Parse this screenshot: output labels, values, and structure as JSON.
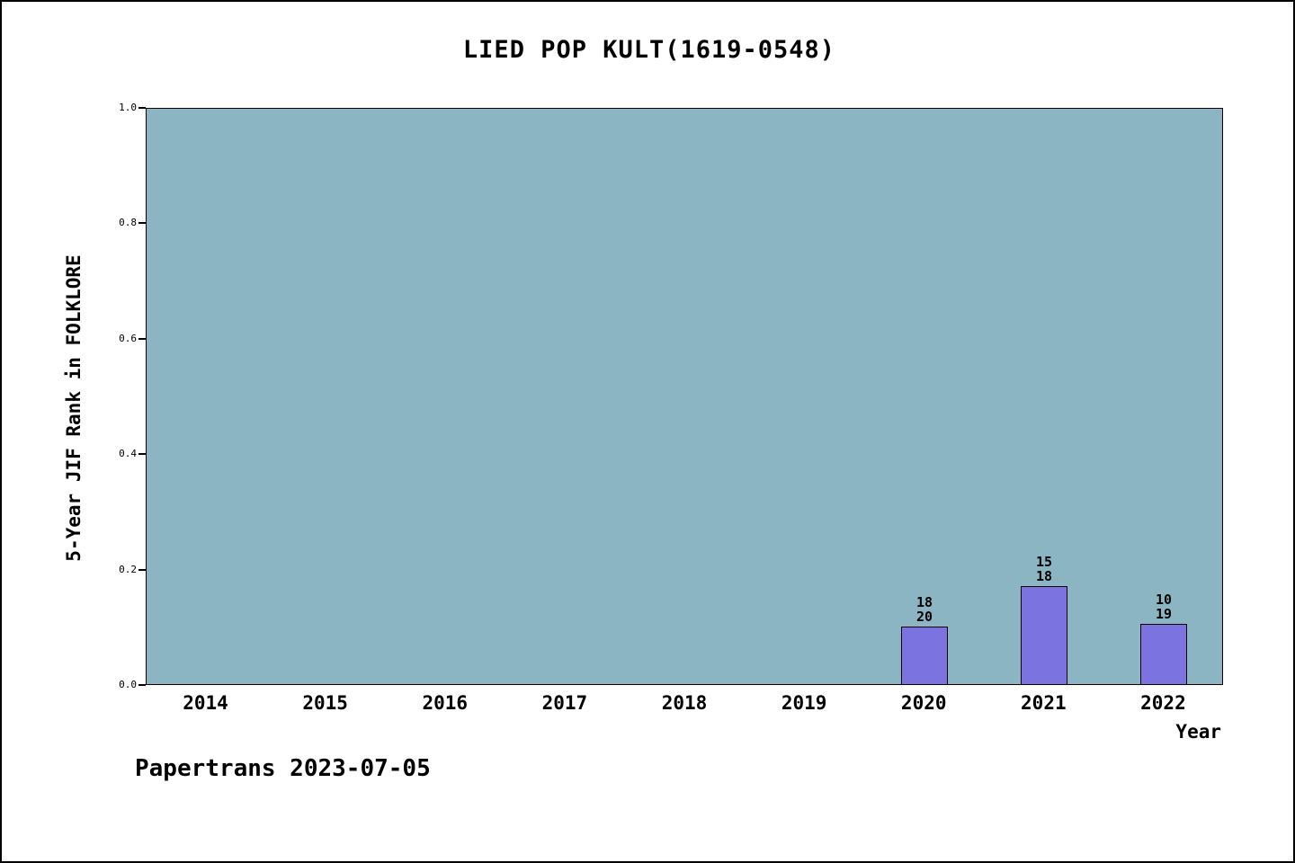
{
  "footer": "Papertrans 2023-07-05",
  "chart_data": {
    "type": "bar",
    "title": "LIED POP KULT(1619-0548)",
    "xlabel": "Year",
    "ylabel": "5-Year JIF Rank in FOLKLORE",
    "categories": [
      "2014",
      "2015",
      "2016",
      "2017",
      "2018",
      "2019",
      "2020",
      "2021",
      "2022"
    ],
    "values": [
      null,
      null,
      null,
      null,
      null,
      null,
      0.1,
      0.17,
      0.105
    ],
    "annotations": [
      null,
      null,
      null,
      null,
      null,
      null,
      [
        "18",
        "20"
      ],
      [
        "15",
        "18"
      ],
      [
        "10",
        "19"
      ]
    ],
    "ylim": [
      0,
      1
    ],
    "yticks": [
      0.0,
      0.2,
      0.4,
      0.6,
      0.8,
      1.0
    ],
    "grid": false,
    "legend": "none",
    "plot_bg_color": "#8cb5c4",
    "bar_color": "#7b73e0"
  }
}
